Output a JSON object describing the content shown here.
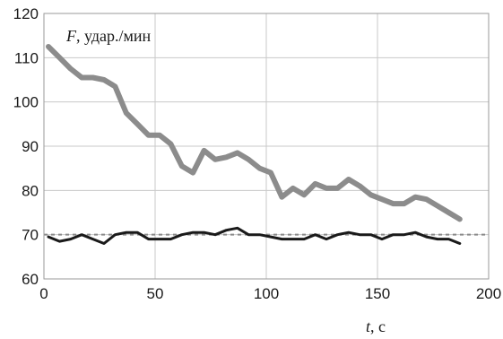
{
  "chart_data": {
    "type": "line",
    "title": "",
    "ylabel": {
      "symbol": "F",
      "unit": ", удар./мин"
    },
    "xlabel": {
      "symbol": "t",
      "unit": ", с"
    },
    "xlim": [
      0,
      200
    ],
    "ylim": [
      60,
      120
    ],
    "xticks": [
      0,
      50,
      100,
      150,
      200
    ],
    "yticks": [
      60,
      70,
      80,
      90,
      100,
      110,
      120
    ],
    "grid": true,
    "legend": "none",
    "reference_line": {
      "y": 70,
      "style": "dashed",
      "color": "#8a8a8a"
    },
    "series": [
      {
        "color": "#8c8c8c",
        "x": [
          2,
          7,
          12,
          17,
          22,
          27,
          32,
          37,
          42,
          47,
          52,
          57,
          62,
          67,
          72,
          77,
          82,
          87,
          92,
          97,
          102,
          107,
          112,
          117,
          122,
          127,
          132,
          137,
          142,
          147,
          152,
          157,
          162,
          167,
          172,
          177,
          182,
          187
        ],
        "y": [
          112.5,
          110,
          107.5,
          105.5,
          105.5,
          105,
          103.5,
          97.5,
          95,
          92.5,
          92.5,
          90.5,
          85.5,
          84,
          89,
          87,
          87.5,
          88.5,
          87,
          85,
          84,
          78.5,
          80.5,
          79,
          81.5,
          80.5,
          80.5,
          82.5,
          81,
          79,
          78,
          77,
          77,
          78.5,
          78,
          76.5,
          75,
          73.5
        ]
      },
      {
        "color": "#1a1a1a",
        "x": [
          2,
          7,
          12,
          17,
          22,
          27,
          32,
          37,
          42,
          47,
          52,
          57,
          62,
          67,
          72,
          77,
          82,
          87,
          92,
          97,
          102,
          107,
          112,
          117,
          122,
          127,
          132,
          137,
          142,
          147,
          152,
          157,
          162,
          167,
          172,
          177,
          182,
          187
        ],
        "y": [
          69.5,
          68.5,
          69,
          70,
          69,
          68,
          70,
          70.5,
          70.5,
          69,
          69,
          69,
          70,
          70.5,
          70.5,
          70,
          71,
          71.5,
          70,
          70,
          69.5,
          69,
          69,
          69,
          70,
          69,
          70,
          70.5,
          70,
          70,
          69,
          70,
          70,
          70.5,
          69.5,
          69,
          69,
          68
        ]
      }
    ]
  }
}
